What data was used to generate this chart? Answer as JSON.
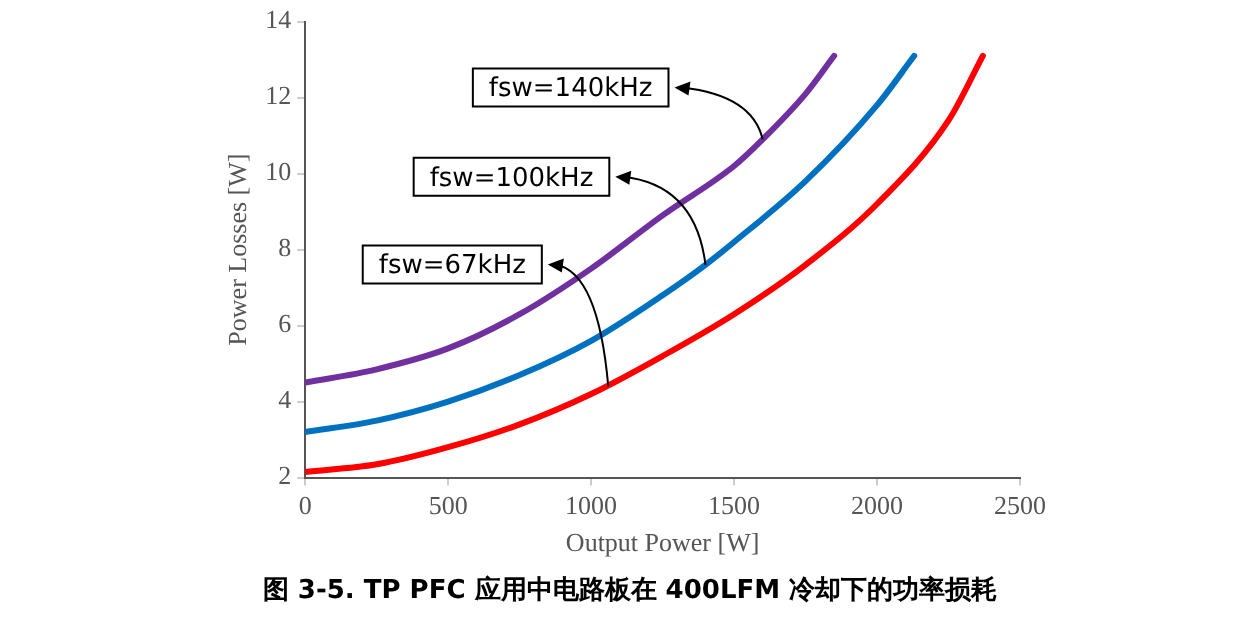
{
  "chart_data": {
    "type": "line",
    "xlabel": "Output Power [W]",
    "ylabel": "Power Losses [W]",
    "xlim": [
      0,
      2500
    ],
    "xticks": [
      0,
      500,
      1000,
      1500,
      2000,
      2500
    ],
    "ylim": [
      2,
      14
    ],
    "yticks": [
      2,
      4,
      6,
      8,
      10,
      12,
      14
    ],
    "grid": false,
    "legend": false,
    "marker": "none",
    "line_style": "solid",
    "series": [
      {
        "color": "#7030a0",
        "x": [
          0,
          250,
          500,
          750,
          1000,
          1250,
          1500,
          1600,
          1750,
          1850
        ],
        "values": [
          4.5,
          4.85,
          5.4,
          6.3,
          7.5,
          8.9,
          10.2,
          10.9,
          12.1,
          13.1
        ]
      },
      {
        "color": "#0070c0",
        "x": [
          0,
          250,
          500,
          750,
          1000,
          1250,
          1400,
          1500,
          1750,
          2000,
          2130
        ],
        "values": [
          3.2,
          3.5,
          4.0,
          4.7,
          5.6,
          6.8,
          7.6,
          8.2,
          9.8,
          11.8,
          13.1
        ]
      },
      {
        "color": "#ff0000",
        "x": [
          0,
          250,
          500,
          750,
          1000,
          1250,
          1500,
          1750,
          2000,
          2250,
          2370
        ],
        "values": [
          2.15,
          2.35,
          2.8,
          3.4,
          4.2,
          5.2,
          6.3,
          7.6,
          9.2,
          11.4,
          13.1
        ]
      }
    ],
    "annotations": [
      {
        "text": "fsw=140kHz",
        "x": 1600,
        "y": 10.9
      },
      {
        "text": "fsw=100kHz",
        "x": 1400,
        "y": 7.6
      },
      {
        "text": "fsw=67kHz",
        "x": 1060,
        "y": 4.4
      },
      "图 3-5. TP PFC 应用中电路板在 400LFM 冷却下的功率损耗"
    ]
  }
}
